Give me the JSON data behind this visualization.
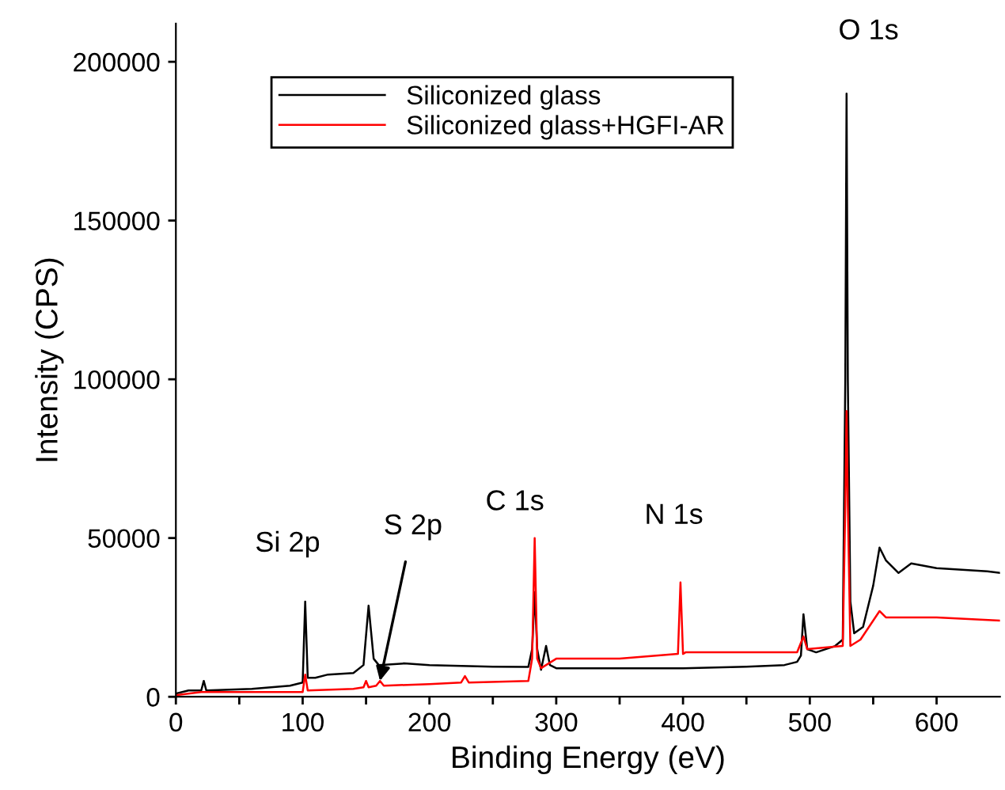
{
  "chart_data": {
    "type": "line",
    "xlabel": "Binding Energy (eV)",
    "ylabel": "Intensity (CPS)",
    "xlim": [
      0,
      650
    ],
    "ylim": [
      0,
      212000
    ],
    "xticks": [
      0,
      {
        "value": 50,
        "label": null
      },
      100,
      {
        "value": 150,
        "label": null
      },
      200,
      {
        "value": 250,
        "label": null
      },
      300,
      {
        "value": 350,
        "label": null
      },
      400,
      {
        "value": 450,
        "label": null
      },
      500,
      {
        "value": 550,
        "label": null
      },
      600
    ],
    "yticks": [
      0,
      50000,
      100000,
      150000,
      200000
    ],
    "grid": false,
    "legend": "top left",
    "marker": "none",
    "line_style": "solid",
    "series": [
      {
        "name": "Siliconized glass",
        "color": "#000000",
        "x": [
          0,
          10,
          20,
          22,
          24,
          60,
          90,
          100,
          102,
          104,
          110,
          120,
          140,
          148,
          152,
          156,
          160,
          180,
          200,
          250,
          278,
          281,
          283,
          285,
          288,
          292,
          295,
          300,
          350,
          400,
          450,
          480,
          490,
          493,
          495,
          498,
          505,
          520,
          526,
          528,
          529,
          530,
          532,
          535,
          542,
          550,
          555,
          560,
          570,
          580,
          600,
          620,
          640,
          650
        ],
        "values": [
          1000,
          2000,
          2000,
          5000,
          2000,
          2500,
          3500,
          4500,
          30000,
          6000,
          6000,
          7000,
          7500,
          10000,
          28700,
          12000,
          10000,
          10500,
          10000,
          9500,
          9400,
          15000,
          33000,
          15000,
          8500,
          16000,
          10000,
          9000,
          9000,
          9000,
          9500,
          10000,
          11000,
          13000,
          26000,
          15000,
          14000,
          16000,
          18000,
          100000,
          190000,
          100000,
          30000,
          20000,
          22000,
          35000,
          47000,
          43000,
          39000,
          42000,
          40500,
          40000,
          39500,
          39000
        ]
      },
      {
        "name": "Siliconized glass+HGFI-AR",
        "color": "#ff0000",
        "x": [
          0,
          20,
          60,
          100,
          102,
          104,
          140,
          148,
          150,
          152,
          158,
          161,
          164,
          200,
          225,
          228,
          231,
          278,
          281,
          283,
          285,
          288,
          300,
          350,
          396,
          398,
          400,
          402,
          450,
          490,
          495,
          498,
          526,
          528,
          529,
          530,
          532,
          540,
          550,
          555,
          560,
          600,
          650
        ],
        "values": [
          500,
          1500,
          1500,
          1500,
          7000,
          2000,
          2500,
          3000,
          5000,
          3000,
          3500,
          5000,
          3500,
          4000,
          4500,
          6500,
          4500,
          5000,
          12000,
          50000,
          12000,
          9000,
          12000,
          12000,
          13500,
          36000,
          13500,
          14000,
          14000,
          14000,
          19000,
          15000,
          16000,
          60000,
          90000,
          60000,
          16000,
          18000,
          24000,
          27000,
          25000,
          25000,
          24000
        ]
      }
    ],
    "annotations": [
      {
        "text": "Si 2p",
        "x": 102,
        "y": 30000
      },
      {
        "text": "S 2p",
        "x": 161,
        "y": 5000
      },
      {
        "text": "C 1s",
        "x": 283,
        "y": 50000
      },
      {
        "text": "N 1s",
        "x": 398,
        "y": 36000
      },
      {
        "text": "O 1s",
        "x": 529,
        "y": 190000
      }
    ]
  }
}
